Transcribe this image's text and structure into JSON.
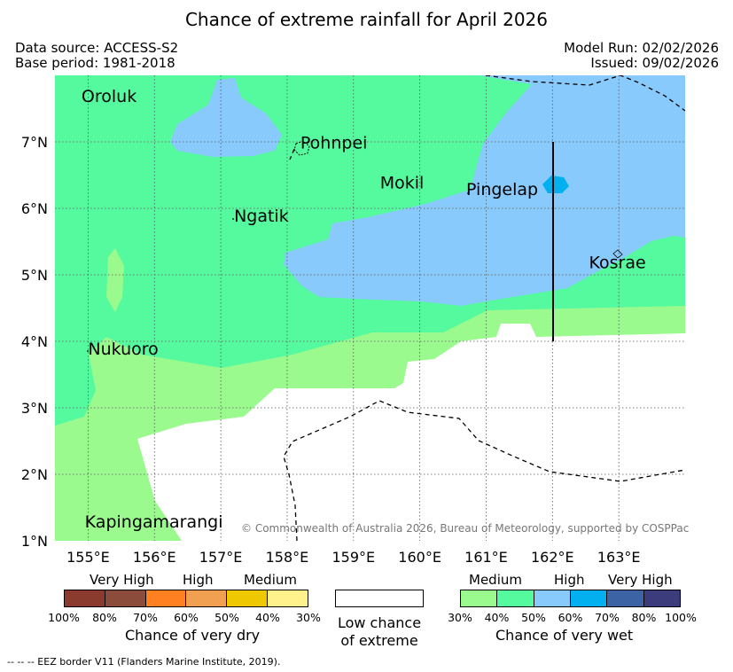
{
  "title": "Chance of extreme rainfall for April 2026",
  "header": {
    "data_source": "Data source: ACCESS-S2",
    "base_period": "Base period: 1981-2018",
    "model_run": "Model Run: 02/02/2026",
    "issued": "Issued: 09/02/2026"
  },
  "map": {
    "lon_range": [
      154.5,
      164.0
    ],
    "lat_range": [
      1.0,
      8.0
    ],
    "lon_ticks": [
      "155°E",
      "156°E",
      "157°E",
      "158°E",
      "159°E",
      "160°E",
      "161°E",
      "162°E",
      "163°E"
    ],
    "lat_ticks": [
      "1°N",
      "2°N",
      "3°N",
      "4°N",
      "5°N",
      "6°N",
      "7°N"
    ],
    "places": [
      {
        "name": "Oroluk",
        "lon": 154.9,
        "lat": 7.6
      },
      {
        "name": "Pohnpei",
        "lon": 158.2,
        "lat": 6.9
      },
      {
        "name": "Mokil",
        "lon": 159.4,
        "lat": 6.3
      },
      {
        "name": "Pingelap",
        "lon": 160.7,
        "lat": 6.2
      },
      {
        "name": "Ngatik",
        "lon": 157.2,
        "lat": 5.8
      },
      {
        "name": "Kosrae",
        "lon": 162.55,
        "lat": 5.1
      },
      {
        "name": "Nukuoro",
        "lon": 155.0,
        "lat": 3.8
      },
      {
        "name": "Kapingamarangi",
        "lon": 154.95,
        "lat": 1.2
      }
    ],
    "copyright": "© Commonwealth of Australia 2026, Bureau of Meteorology, supported by COSPPac"
  },
  "legend": {
    "dry": {
      "levels": [
        "Very High",
        "High",
        "Medium"
      ],
      "colors": [
        "#8b3a2e",
        "#8b4c3c",
        "#ff8020",
        "#f0a050",
        "#eec800",
        "#fff28c"
      ],
      "ticks": [
        "100%",
        "80%",
        "70%",
        "60%",
        "50%",
        "40%",
        "30%"
      ],
      "caption": "Chance of very dry"
    },
    "low": {
      "caption_line1": "Low chance",
      "caption_line2": "of extreme"
    },
    "wet": {
      "levels": [
        "Medium",
        "High",
        "Very High"
      ],
      "colors": [
        "#9afa8e",
        "#55fa9e",
        "#88cafc",
        "#03b0ef",
        "#3c64a4",
        "#3c3c7c"
      ],
      "ticks": [
        "30%",
        "40%",
        "50%",
        "60%",
        "70%",
        "80%",
        "100%"
      ],
      "caption": "Chance of very wet"
    }
  },
  "footnote": "--  --  -- EEZ border V11 (Flanders Marine Institute, 2019)."
}
